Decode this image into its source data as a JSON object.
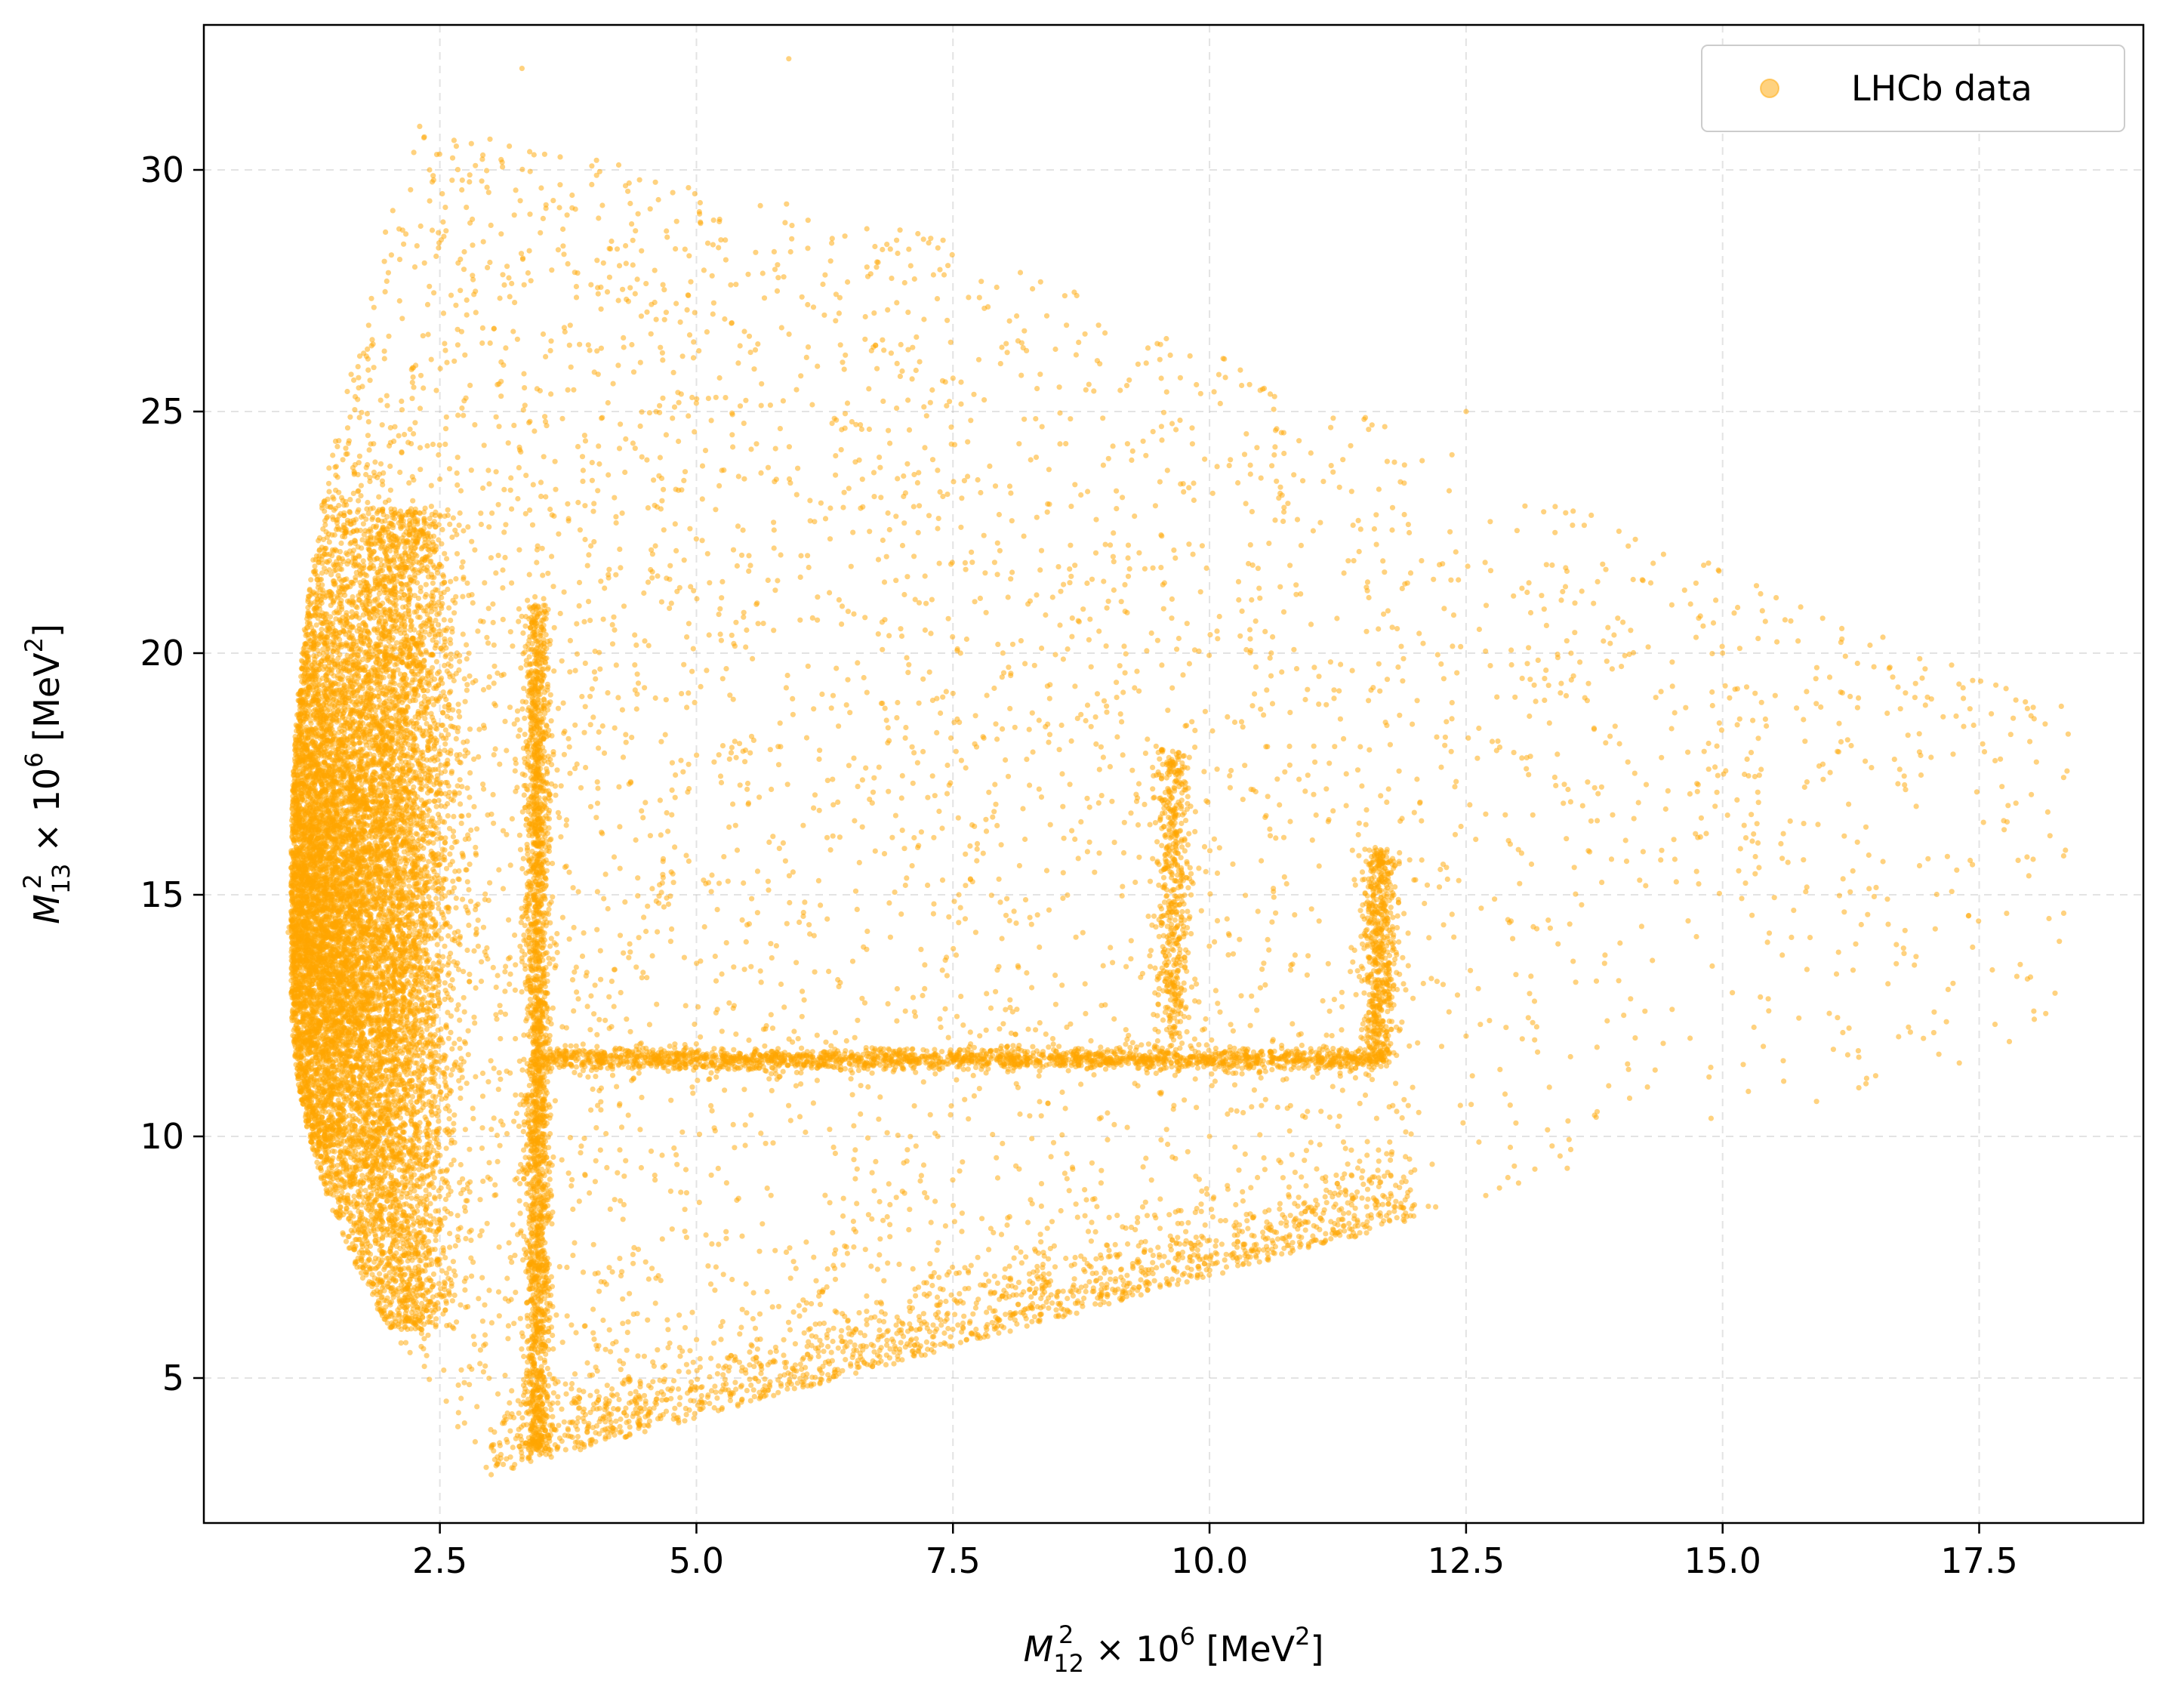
{
  "chart_data": {
    "type": "scatter",
    "xlim": [
      0.2,
      19.1
    ],
    "ylim": [
      2.0,
      33.0
    ],
    "x_ticks": [
      2.5,
      5.0,
      7.5,
      10.0,
      12.5,
      15.0,
      17.5
    ],
    "x_tick_labels": [
      "2.5",
      "5.0",
      "7.5",
      "10.0",
      "12.5",
      "15.0",
      "17.5"
    ],
    "y_ticks": [
      5,
      10,
      15,
      20,
      25,
      30
    ],
    "y_tick_labels": [
      "5",
      "10",
      "15",
      "20",
      "25",
      "30"
    ],
    "xlabel": {
      "main": "M",
      "sub": "12",
      "sup": "2",
      "mid": " × 10",
      "exp": "6",
      "unit": " [MeV",
      "unit_sup": "2",
      "unit_end": "]"
    },
    "ylabel": {
      "main": "M",
      "sub": "13",
      "sup": "2",
      "mid": " × 10",
      "exp": "6",
      "unit": " [MeV",
      "unit_sup": "2",
      "unit_end": "]"
    },
    "grid": true,
    "legend_position": "top-right",
    "series": [
      {
        "name": "LHCb data",
        "color": "#ffa500",
        "marker": "circle",
        "alpha": 0.5,
        "approx_points": 30000,
        "description_points": [
          [
            1.05,
            14.5
          ],
          [
            1.5,
            15.0
          ],
          [
            2.1,
            22.0
          ],
          [
            2.0,
            18.0
          ],
          [
            3.45,
            11.5
          ],
          [
            3.45,
            18.0
          ],
          [
            5.0,
            11.6
          ],
          [
            7.5,
            11.6
          ],
          [
            10.0,
            11.6
          ],
          [
            11.5,
            11.7
          ],
          [
            11.6,
            15.0
          ],
          [
            11.7,
            13.0
          ],
          [
            9.7,
            15.5
          ],
          [
            7.0,
            17.0
          ],
          [
            3.0,
            3.0
          ],
          [
            6.0,
            6.5
          ],
          [
            10.0,
            10.0
          ],
          [
            14.0,
            14.0
          ],
          [
            18.3,
            18.9
          ],
          [
            5.9,
            32.3
          ],
          [
            3.3,
            32.1
          ],
          [
            15.0,
            20.0
          ],
          [
            12.5,
            25.0
          ],
          [
            2.4,
            30.0
          ]
        ]
      }
    ]
  }
}
